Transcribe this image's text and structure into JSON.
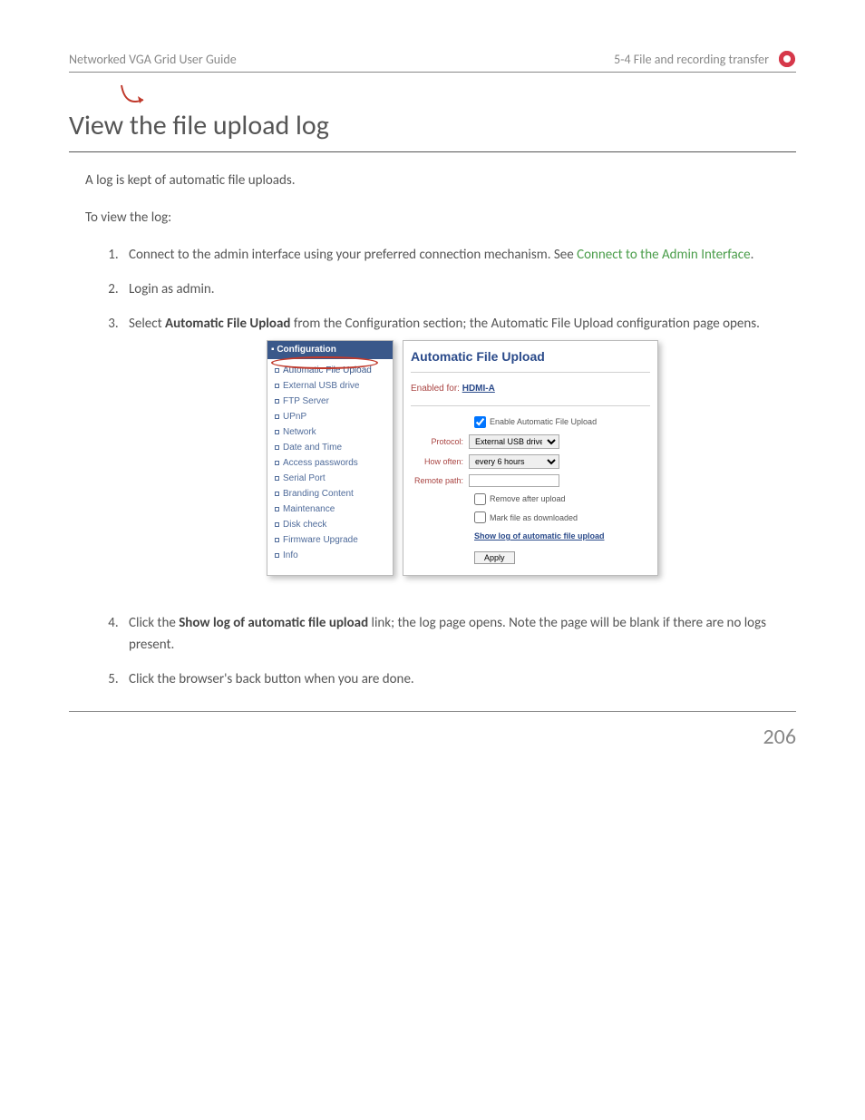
{
  "header": {
    "left": "Networked VGA Grid User Guide",
    "right": "5-4 File and recording transfer",
    "logo_color": "#d6384a"
  },
  "title": "View the file upload log",
  "intro": "A log is kept of automatic file uploads.",
  "to_view": "To view the log:",
  "steps": {
    "s1_pre": "Connect to the admin interface using your preferred connection mechanism. See ",
    "s1_link": "Connect to the Admin Interface",
    "s1_post": ".",
    "s2": "Login as admin.",
    "s3_pre": "Select ",
    "s3_bold": "Automatic File Upload",
    "s3_post": " from the Configuration section; the Automatic File Upload configuration page opens.",
    "s4_pre": "Click the ",
    "s4_bold": "Show log of automatic file upload",
    "s4_post": " link; the log page opens. Note the page will be blank if there are no logs present.",
    "s5": "Click the browser's back button when you are done."
  },
  "screenshot": {
    "sidebar": {
      "section_title": "Configuration",
      "items": [
        "Automatic File Upload",
        "External USB drive",
        "FTP Server",
        "UPnP",
        "Network",
        "Date and Time",
        "Access passwords",
        "Serial Port",
        "Branding Content",
        "Maintenance",
        "Disk check",
        "Firmware Upgrade",
        "Info"
      ],
      "callout_color": "#c0392b"
    },
    "main": {
      "heading": "Automatic File Upload",
      "enabled_label": "Enabled for: ",
      "enabled_value": "HDMI-A",
      "enable_cb_label": "Enable Automatic File Upload",
      "enable_cb_checked": true,
      "protocol_label": "Protocol:",
      "protocol_value": "External USB drive",
      "howoften_label": "How often:",
      "howoften_value": "every 6 hours",
      "remotepath_label": "Remote path:",
      "remotepath_value": "",
      "remove_after_label": "Remove after upload",
      "mark_downloaded_label": "Mark file as downloaded",
      "show_log_link": "Show log of automatic file upload",
      "apply_label": "Apply"
    }
  },
  "page_number": "206",
  "colors": {
    "link_green": "#4a9d4a",
    "panel_blue": "#2a4a8a",
    "panel_red_label": "#a94442",
    "header_bg": "#3a588a"
  }
}
